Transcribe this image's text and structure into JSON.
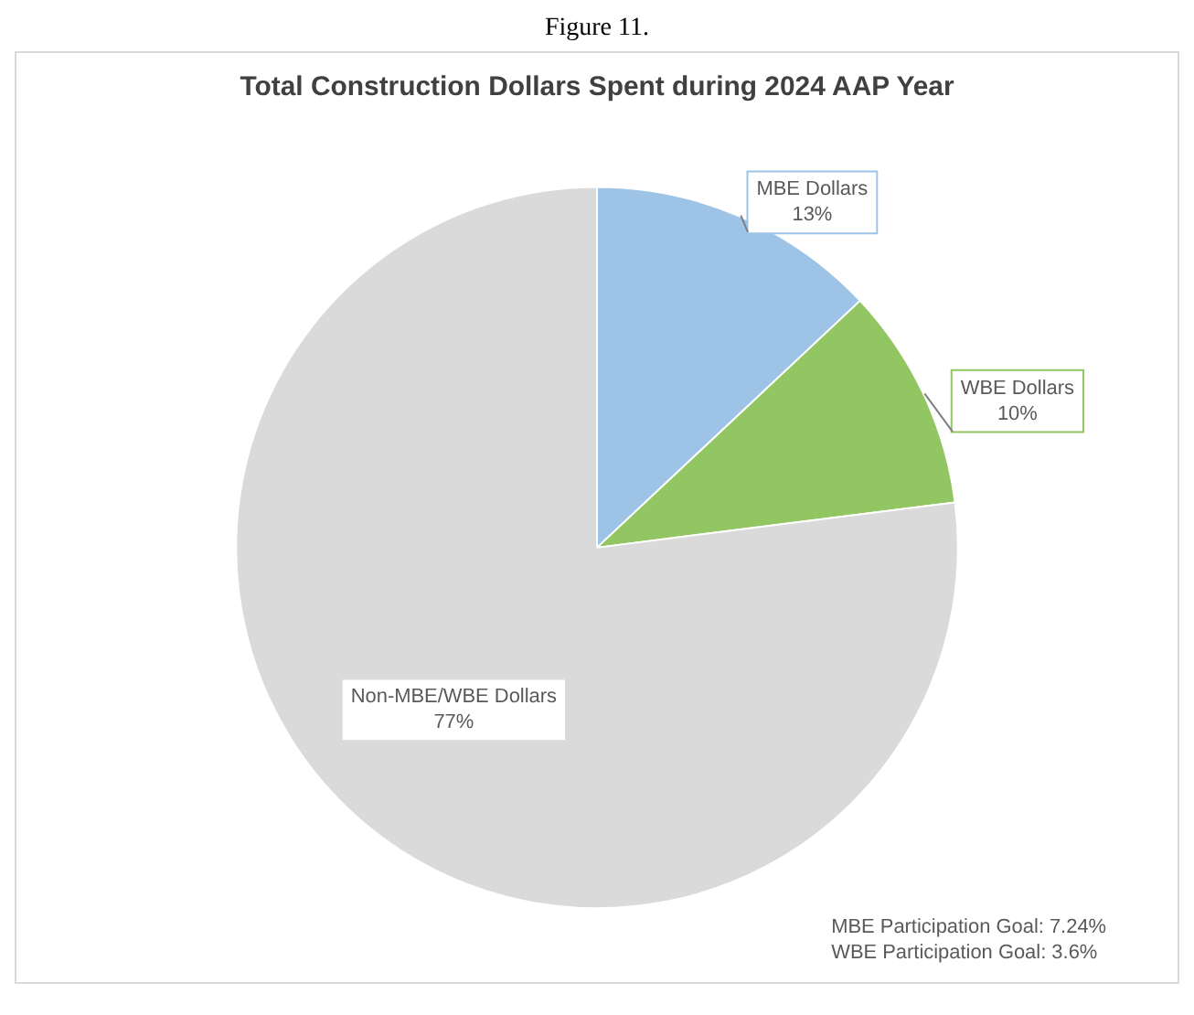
{
  "chart_data": {
    "type": "pie",
    "title": "Total Construction Dollars Spent during 2024 AAP Year",
    "categories": [
      "MBE Dollars",
      "WBE Dollars",
      "Non-MBE/WBE Dollars"
    ],
    "values": [
      13,
      10,
      77
    ],
    "colors": [
      "#9dc3e6",
      "#92c663",
      "#dadada"
    ],
    "value_labels": [
      "13%",
      "10%",
      "77%"
    ],
    "legend": false,
    "annotations": [
      "Figure 11.",
      "MBE Participation Goal: 7.24%",
      "WBE Participation Goal: 3.6%"
    ]
  }
}
